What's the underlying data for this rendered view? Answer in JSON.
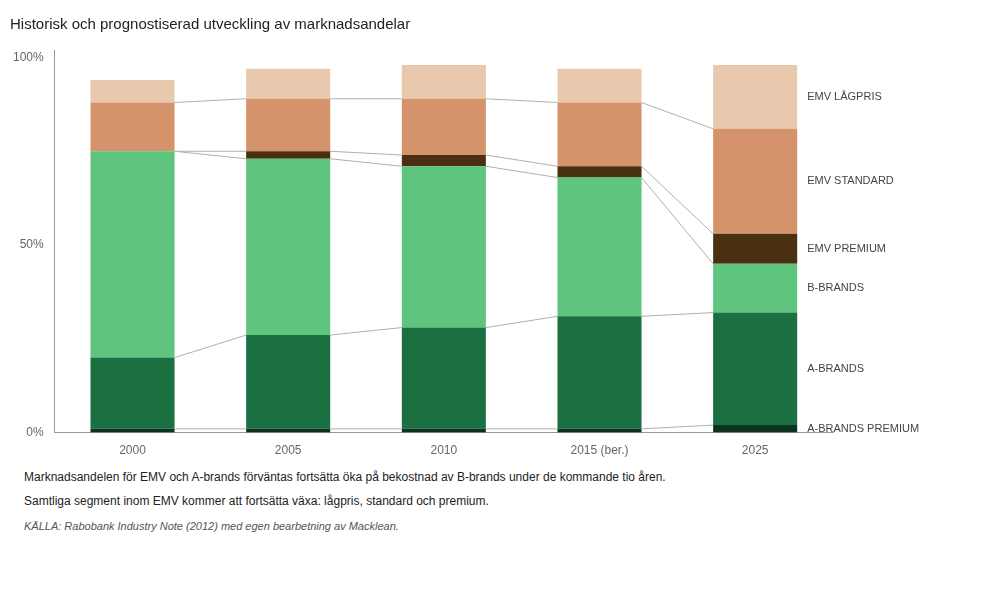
{
  "chart_data": {
    "type": "bar",
    "stacked": true,
    "title": "Historisk och prognostiserad utveckling av marknadsandelar",
    "categories": [
      "2000",
      "2005",
      "2010",
      "2015 (ber.)",
      "2025"
    ],
    "series": [
      {
        "name": "A-BRANDS PREMIUM",
        "color": "#0d3320",
        "values": [
          1,
          1,
          1,
          1,
          2
        ]
      },
      {
        "name": "A-BRANDS",
        "color": "#1a7040",
        "values": [
          19,
          25,
          27,
          30,
          30
        ]
      },
      {
        "name": "B-BRANDS",
        "color": "#5ec47e",
        "values": [
          55,
          47,
          43,
          37,
          13
        ]
      },
      {
        "name": "EMV PREMIUM",
        "color": "#4a3010",
        "values": [
          0,
          2,
          3,
          3,
          8
        ]
      },
      {
        "name": "EMV STANDARD",
        "color": "#d4936a",
        "values": [
          13,
          14,
          15,
          17,
          28
        ]
      },
      {
        "name": "EMV LÅGPRIS",
        "color": "#e8c9ae",
        "values": [
          6,
          8,
          9,
          9,
          17
        ]
      }
    ],
    "ylim": [
      0,
      102
    ],
    "yticks": [
      {
        "value": 0,
        "label": "0%"
      },
      {
        "value": 50,
        "label": "50%"
      },
      {
        "value": 100,
        "label": "100%"
      }
    ],
    "grid": false,
    "legend": "right",
    "annotations": [
      "Marknadsandelen för EMV och A-brands förväntas fortsätta öka på bekostnad av B-brands under de kommande tio åren.",
      "Samtliga segment inom EMV kommer att fortsätta växa: lågpris, standard och premium.",
      "KÄLLA: Rabobank Industry Note (2012) med egen bearbetning av Macklean."
    ]
  }
}
